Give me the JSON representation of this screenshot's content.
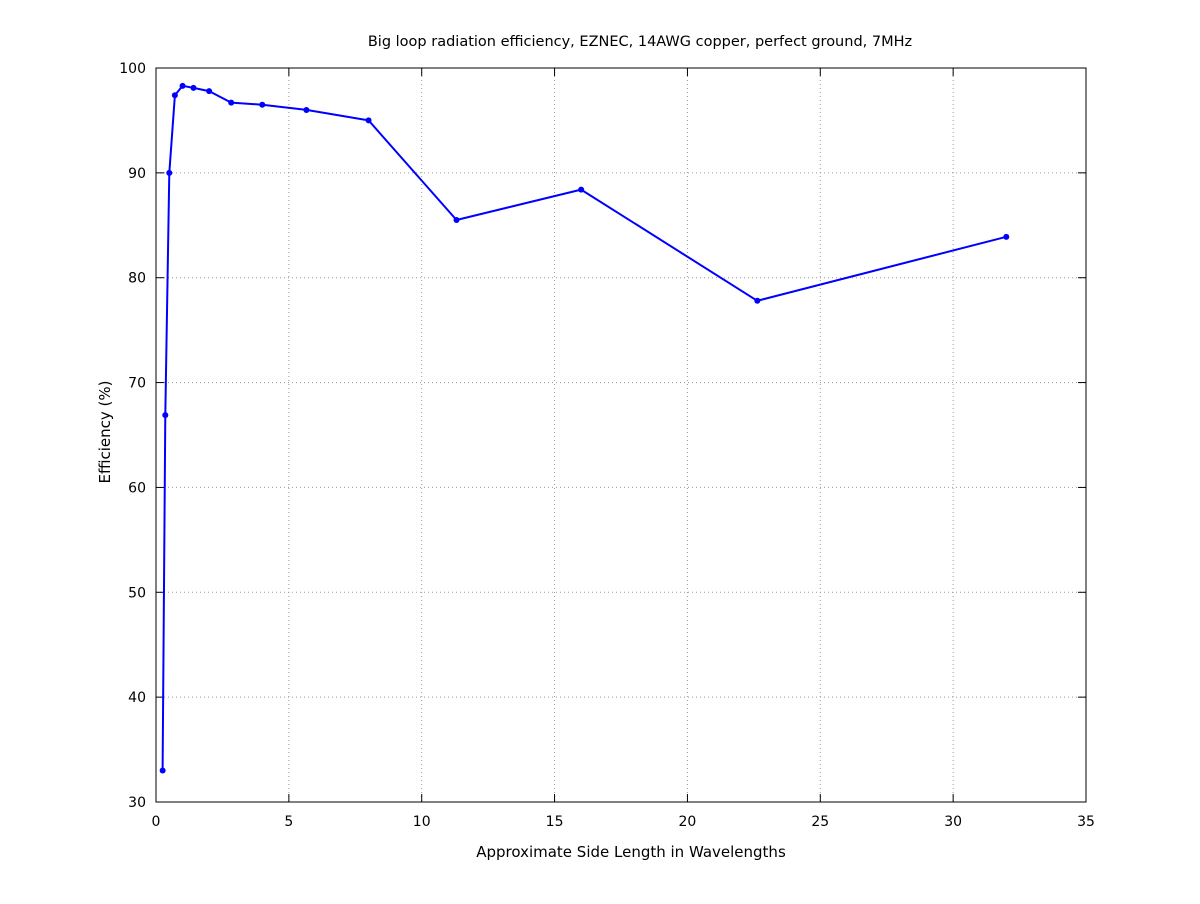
{
  "chart_data": {
    "type": "line",
    "title": "Big loop radiation efficiency, EZNEC, 14AWG copper, perfect ground, 7MHz",
    "xlabel": "Approximate Side Length in Wavelengths",
    "ylabel": "Efficiency (%)",
    "xlim": [
      0,
      35
    ],
    "ylim": [
      30,
      100
    ],
    "xticks": [
      "0",
      "5",
      "10",
      "15",
      "20",
      "25",
      "30",
      "35"
    ],
    "yticks": [
      "30",
      "40",
      "50",
      "60",
      "70",
      "80",
      "90",
      "100"
    ],
    "grid": true,
    "legend": "none",
    "series": [
      {
        "color": "#0000ff",
        "x": [
          0.25,
          0.35,
          0.5,
          0.71,
          1.0,
          1.41,
          2.0,
          2.83,
          4.0,
          5.66,
          8.0,
          11.31,
          16.0,
          22.63,
          32.0
        ],
        "y": [
          33.0,
          66.9,
          90.0,
          97.4,
          98.3,
          98.1,
          97.8,
          96.7,
          96.5,
          96.0,
          95.0,
          85.5,
          88.4,
          77.8,
          83.9
        ]
      }
    ]
  }
}
